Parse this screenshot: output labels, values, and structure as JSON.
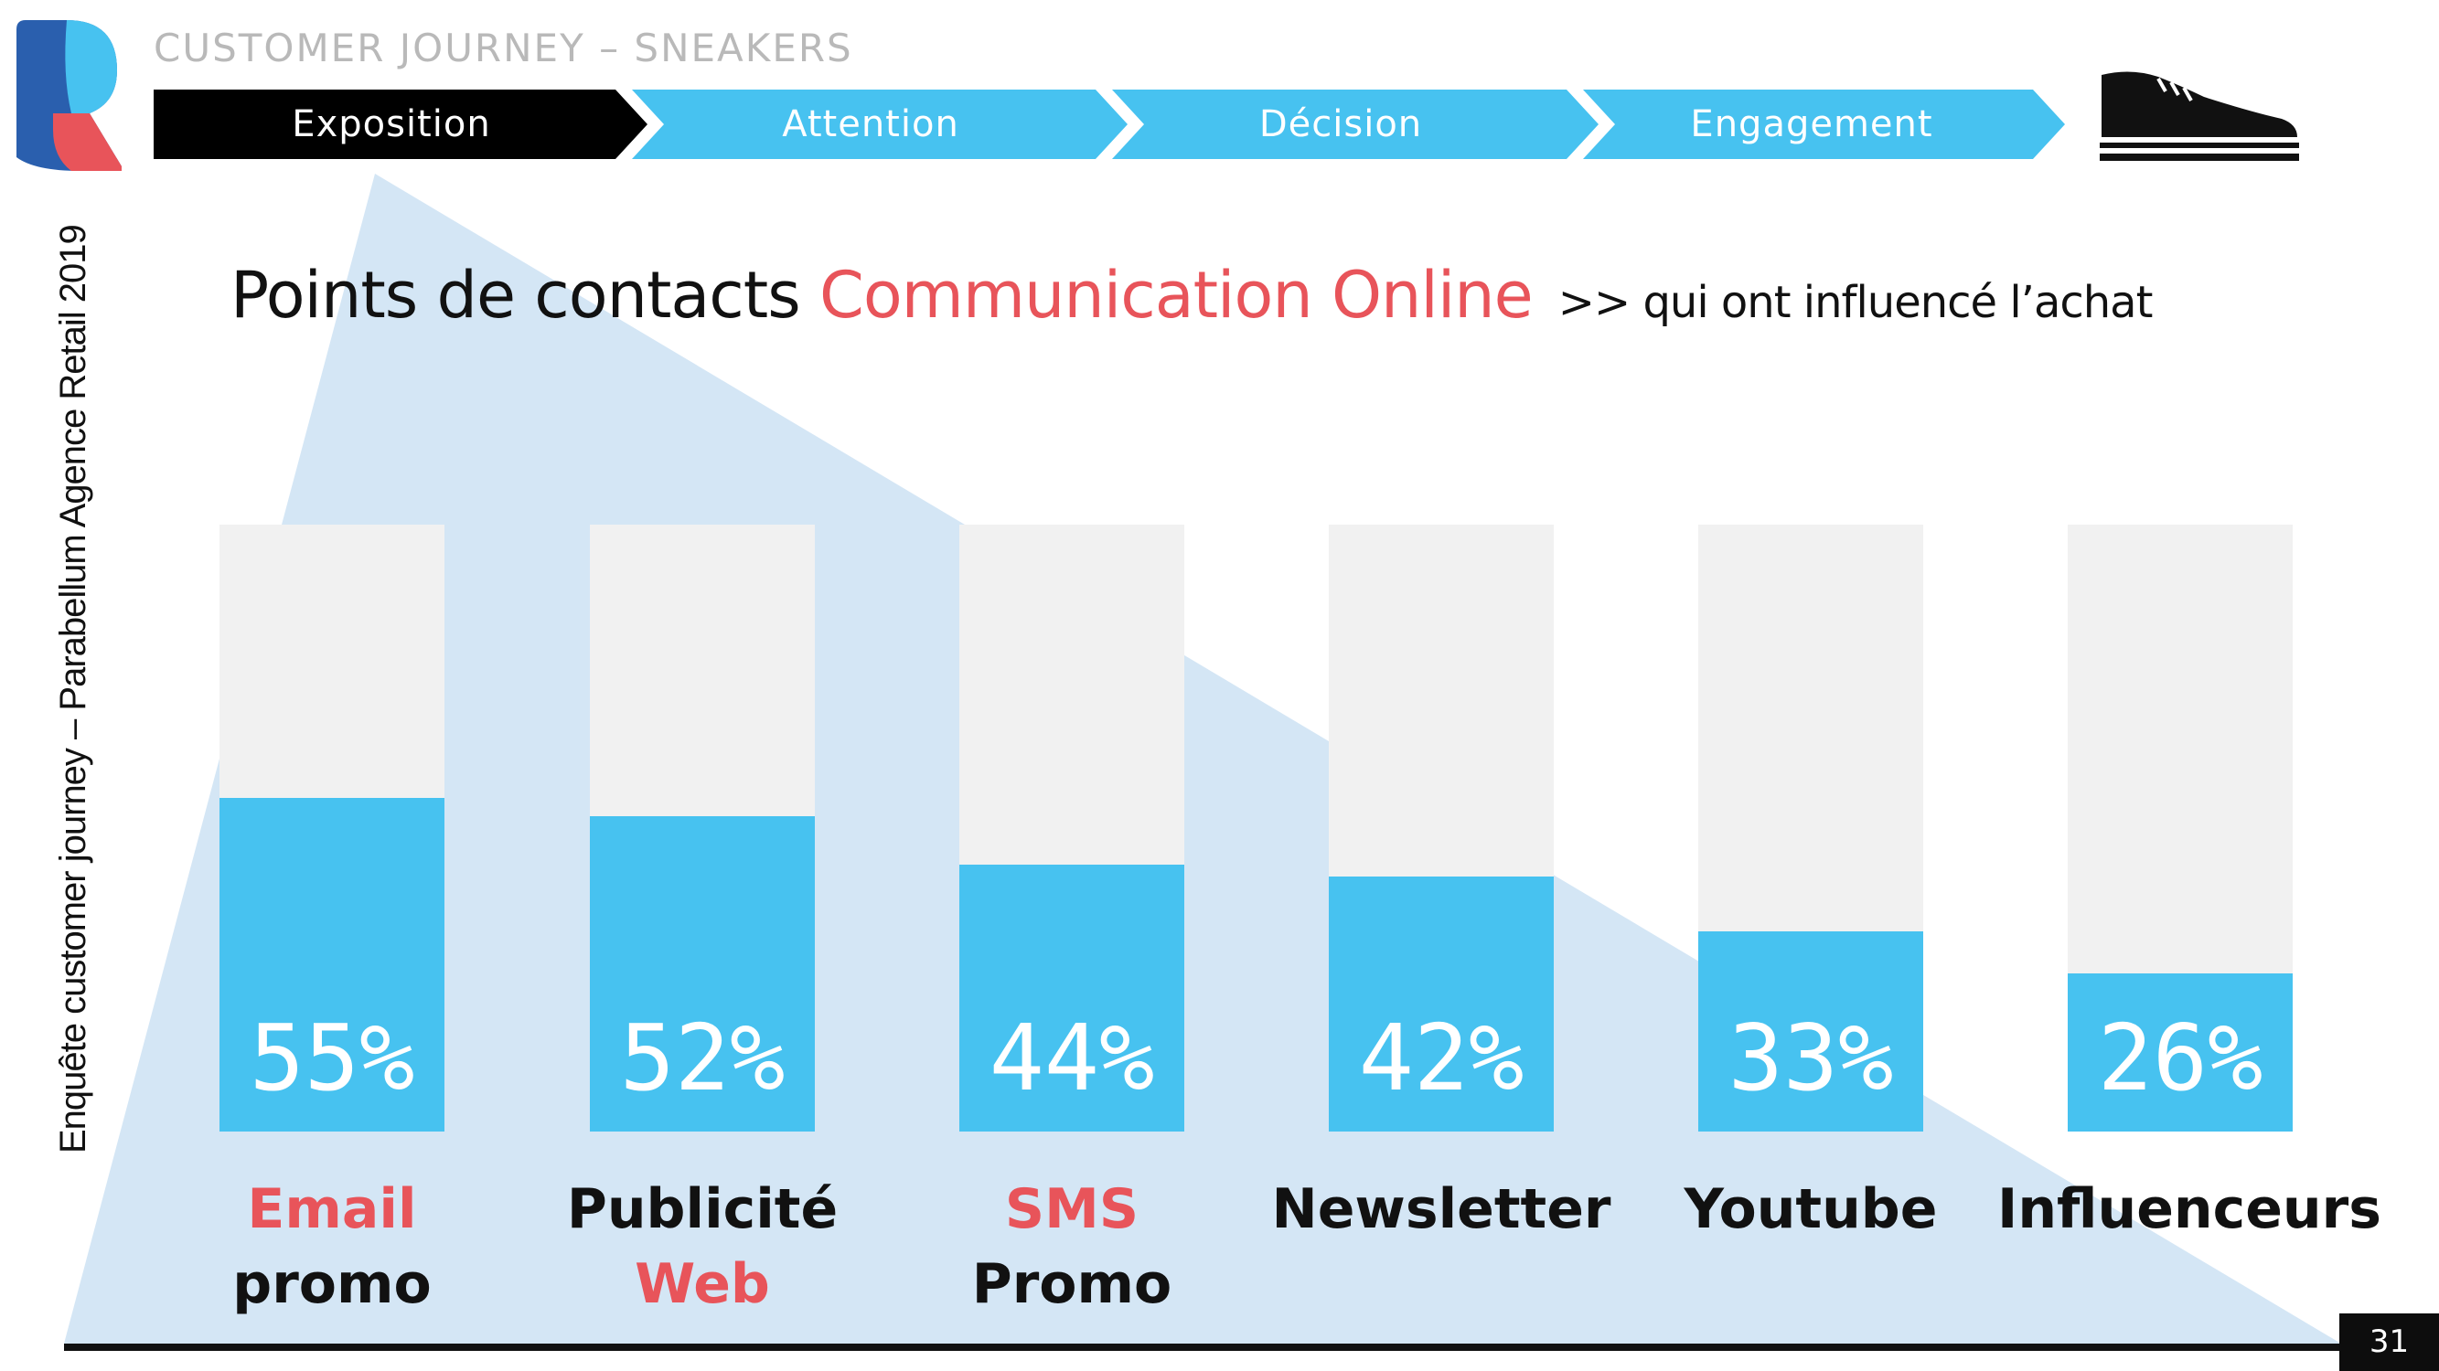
{
  "header": {
    "title": "CUSTOMER JOURNEY – SNEAKERS",
    "steps": [
      "Exposition",
      "Attention",
      "Décision",
      "Engagement"
    ],
    "active_step": "Exposition",
    "icons": {
      "logo": "brand-logo-r",
      "shoe": "sneaker-icon"
    }
  },
  "side_text": "Enquête customer journey – Parabellum Agence Retail 2019",
  "headline": {
    "part1": "Points de contacts",
    "part2": "Communication Online",
    "part3": ">> qui ont influencé l’achat"
  },
  "colors": {
    "accent_red": "#e8545a",
    "bar_blue": "#47c2f0",
    "track_gray": "#f1f1f1",
    "triangle": "#d4e6f5",
    "black": "#000000"
  },
  "chart_data": {
    "type": "bar",
    "categories": [
      "Email promo",
      "Publicité Web",
      "SMS Promo",
      "Newsletter",
      "Youtube",
      "Influenceurs"
    ],
    "values": [
      55,
      52,
      44,
      42,
      33,
      26
    ],
    "value_labels": [
      "55%",
      "52%",
      "44%",
      "42%",
      "33%",
      "26%"
    ],
    "ylim": [
      0,
      100
    ],
    "unit": "%",
    "label_lines": [
      [
        {
          "text": "Email",
          "accent": true
        },
        {
          "text": "promo",
          "accent": false
        }
      ],
      [
        {
          "text": "Publicité",
          "accent": false
        },
        {
          "text": "Web",
          "accent": true
        }
      ],
      [
        {
          "text": "SMS",
          "accent": true
        },
        {
          "text": "Promo",
          "accent": false
        }
      ],
      [
        {
          "text": "Newsletter",
          "accent": false
        }
      ],
      [
        {
          "text": "Youtube",
          "accent": false
        }
      ],
      [
        {
          "text": "Influenceurs",
          "accent": false
        }
      ]
    ]
  },
  "footer": {
    "page_number": "31"
  }
}
